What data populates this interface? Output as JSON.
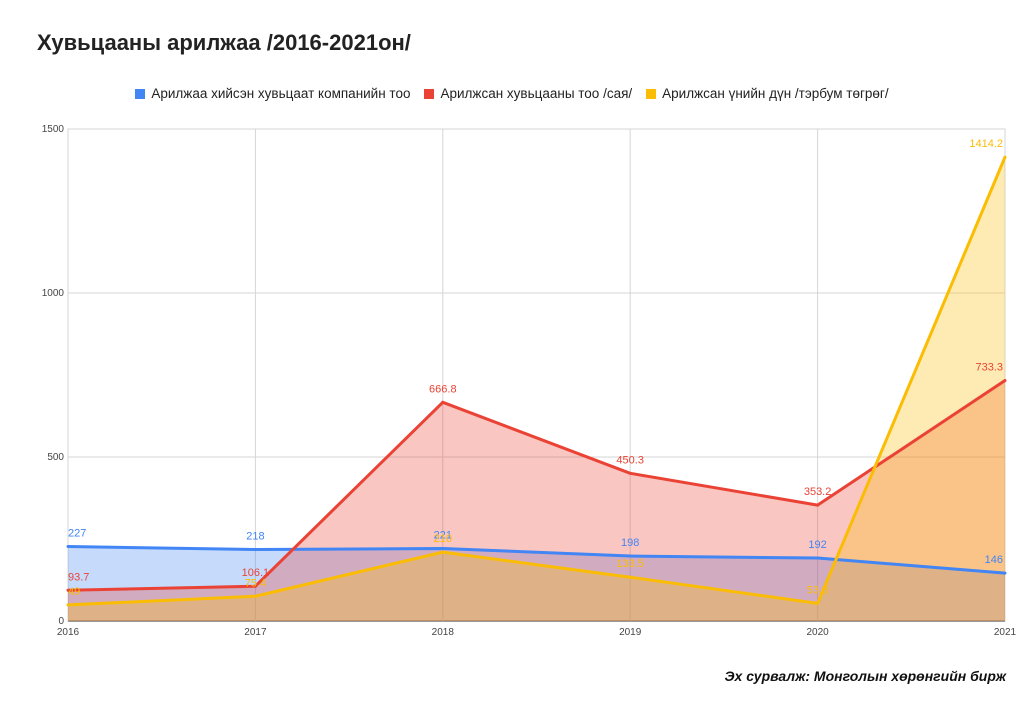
{
  "chart_data": {
    "type": "area",
    "title": "Хувьцааны арилжаа /2016-2021он/",
    "x": [
      "2016",
      "2017",
      "2018",
      "2019",
      "2020",
      "2021"
    ],
    "ylim": [
      0,
      1500
    ],
    "yticks": [
      "0",
      "500",
      "1000",
      "1500"
    ],
    "grid": true,
    "legend_position": "top",
    "series": [
      {
        "name": "Арилжаа хийсэн хувьцаат компанийн тоо",
        "color": "#4285f4",
        "fill": "#c6d9f8",
        "values": [
          227,
          218,
          221,
          198,
          192,
          146
        ],
        "labels": [
          "227",
          "218",
          "221",
          "198",
          "192",
          "146"
        ]
      },
      {
        "name": "Арилжсан хувьцааны тоо /сая/",
        "color": "#ea4335",
        "fill": "#f4a29b",
        "values": [
          93.7,
          106.1,
          666.8,
          450.3,
          353.2,
          733.3
        ],
        "labels": [
          "93.7",
          "106.1",
          "666.8",
          "450.3",
          "353.2",
          "733.3"
        ]
      },
      {
        "name": "Арилжсан үнийн дүн /тэрбум төгрөг/",
        "color": "#fbbc04",
        "fill": "#fde7a1",
        "values": [
          49,
          75.4,
          210,
          133.5,
          53.8,
          1414.2
        ],
        "labels": [
          "49",
          "75.4",
          "210",
          "133.5",
          "53.8",
          "1414.2"
        ]
      }
    ]
  },
  "source": "Эх сурвалж: Монголын хөрөнгийн бирж"
}
